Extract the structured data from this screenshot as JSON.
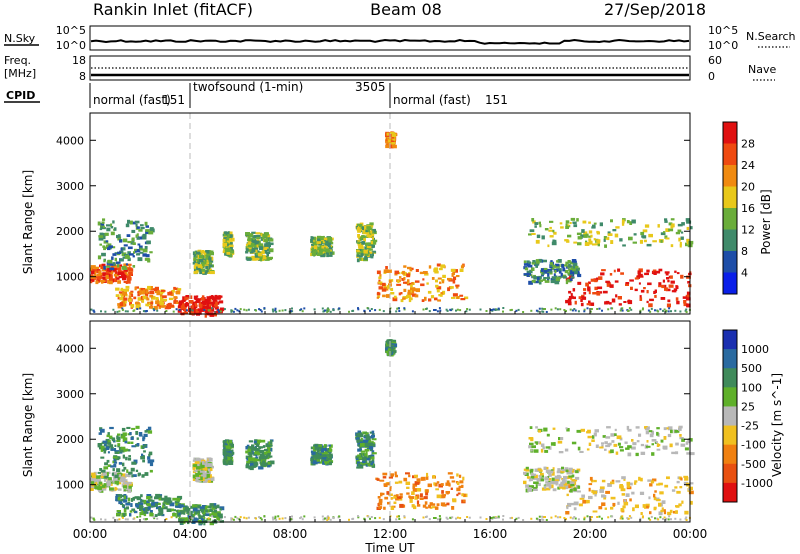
{
  "header": {
    "station": "Rankin Inlet (fitACF)",
    "beam": "Beam 08",
    "date": "27/Sep/2018"
  },
  "noise_panel": {
    "left_label": "N.Sky",
    "left_ticks": [
      "10^5",
      "10^0"
    ],
    "right_ticks": [
      "10^5",
      "10^0"
    ],
    "right_label": "N.Search"
  },
  "freq_panel": {
    "left_label_line1": "Freq.",
    "left_label_line2": "[MHz]",
    "left_ticks": [
      "18",
      "8"
    ],
    "right_ticks": [
      "60",
      "0"
    ],
    "right_label": "Nave"
  },
  "cpid_panel": {
    "label": "CPID",
    "segments": [
      {
        "name": "normal (fast)",
        "id": "151",
        "start": 0,
        "end": 4.0
      },
      {
        "name": "twofsound (1-min)",
        "id": "3505",
        "start": 4.0,
        "end": 12.0
      },
      {
        "name": "normal (fast)",
        "id": "151",
        "start": 12.0,
        "end": 24.0
      }
    ]
  },
  "time_axis": {
    "title": "Time UT",
    "ticks": [
      "00:00",
      "04:00",
      "08:00",
      "12:00",
      "16:00",
      "20:00",
      "00:00"
    ],
    "range_hours": [
      0,
      24
    ]
  },
  "power_panel": {
    "ylabel": "Slant Range [km]",
    "yticks": [
      "1000",
      "2000",
      "3000",
      "4000"
    ],
    "colorbar_label": "Power [dB]",
    "colorbar_ticks": [
      "4",
      "8",
      "12",
      "16",
      "20",
      "24",
      "28"
    ],
    "colors": [
      "#0a1fe8",
      "#1e4ea8",
      "#3f8a6a",
      "#6aad3a",
      "#e8c81a",
      "#f08a10",
      "#ef4a10",
      "#e01010"
    ]
  },
  "velocity_panel": {
    "ylabel": "Slant Range [km]",
    "yticks": [
      "1000",
      "2000",
      "3000",
      "4000"
    ],
    "colorbar_label": "Velocity [m s^-1]",
    "colorbar_ticks": [
      "1000",
      "500",
      "100",
      "25",
      "-25",
      "-100",
      "-500",
      "-1000"
    ],
    "colors": [
      "#1a2fb0",
      "#2a6aa0",
      "#3f8a5a",
      "#5fb02a",
      "#b8b8b8",
      "#f0c020",
      "#f08010",
      "#e85010",
      "#e01010"
    ]
  },
  "chart_data": {
    "type": "heatmap",
    "title": "Rankin Inlet (fitACF)",
    "xlabel": "Time UT",
    "ylabel": "Slant Range [km]",
    "xlim_hours": [
      0,
      24
    ],
    "ylim_km": [
      180,
      4600
    ],
    "dashed_markers_hours": [
      4.0,
      12.0
    ],
    "echo_regions": [
      {
        "t0": 0.0,
        "t1": 1.6,
        "r0": 900,
        "r1": 1300,
        "power": 24,
        "velocity": 25
      },
      {
        "t0": 0.3,
        "t1": 2.4,
        "r0": 1200,
        "r1": 2300,
        "power": 10,
        "velocity": 100
      },
      {
        "t0": 1.0,
        "t1": 3.5,
        "r0": 350,
        "r1": 800,
        "power": 20,
        "velocity": 100
      },
      {
        "t0": 3.5,
        "t1": 5.2,
        "r0": 180,
        "r1": 600,
        "power": 28,
        "velocity": 100
      },
      {
        "t0": 4.1,
        "t1": 4.8,
        "r0": 1100,
        "r1": 1600,
        "power": 14,
        "velocity": 25
      },
      {
        "t0": 5.3,
        "t1": 5.6,
        "r0": 1500,
        "r1": 2000,
        "power": 12,
        "velocity": 100
      },
      {
        "t0": 6.2,
        "t1": 7.2,
        "r0": 1400,
        "r1": 2000,
        "power": 12,
        "velocity": 100
      },
      {
        "t0": 8.8,
        "t1": 9.6,
        "r0": 1500,
        "r1": 1900,
        "power": 12,
        "velocity": 100
      },
      {
        "t0": 10.6,
        "t1": 11.3,
        "r0": 1400,
        "r1": 2200,
        "power": 12,
        "velocity": 100
      },
      {
        "t0": 11.4,
        "t1": 15.0,
        "r0": 500,
        "r1": 1300,
        "power": 20,
        "velocity": -500
      },
      {
        "t0": 11.8,
        "t1": 12.1,
        "r0": 3900,
        "r1": 4200,
        "power": 20,
        "velocity": 100
      },
      {
        "t0": 17.5,
        "t1": 24.0,
        "r0": 1700,
        "r1": 2300,
        "power": 12,
        "velocity": 25
      },
      {
        "t0": 19.0,
        "t1": 24.0,
        "r0": 400,
        "r1": 1200,
        "power": 28,
        "velocity": -100
      },
      {
        "t0": 17.3,
        "t1": 19.5,
        "r0": 900,
        "r1": 1400,
        "power": 10,
        "velocity": 25
      }
    ]
  }
}
